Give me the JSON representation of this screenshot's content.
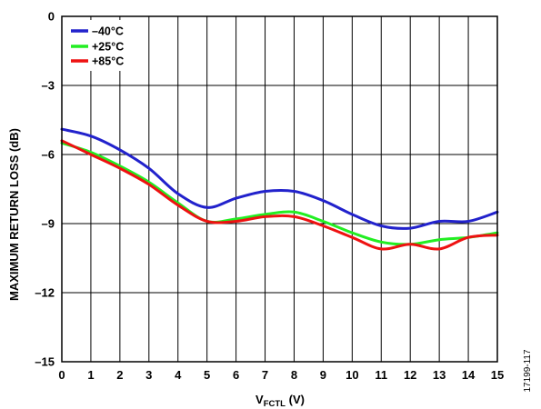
{
  "chart_data": {
    "type": "line",
    "xlabel_main": "V",
    "xlabel_sub": "FCTL",
    "xlabel_unit": " (V)",
    "ylabel": "MAXIMUM RETURN LOSS (dB)",
    "xlim": [
      0,
      15
    ],
    "ylim": [
      -15,
      0
    ],
    "x_ticks": [
      0,
      1,
      2,
      3,
      4,
      5,
      6,
      7,
      8,
      9,
      10,
      11,
      12,
      13,
      14,
      15
    ],
    "y_ticks": [
      0,
      -3,
      -6,
      -9,
      -12,
      -15
    ],
    "y_tick_labels": [
      "0",
      "–3",
      "–6",
      "–9",
      "–12",
      "–15"
    ],
    "grid": true,
    "legend_position": "top-left",
    "figure_id": "17199-117",
    "series": [
      {
        "name": "–40°C",
        "color": "#2222cc",
        "x": [
          0,
          1,
          2,
          3,
          4,
          5,
          6,
          7,
          8,
          9,
          10,
          11,
          12,
          13,
          14,
          15
        ],
        "y": [
          -4.9,
          -5.2,
          -5.8,
          -6.6,
          -7.7,
          -8.3,
          -7.9,
          -7.6,
          -7.6,
          -8.0,
          -8.6,
          -9.1,
          -9.2,
          -8.9,
          -8.9,
          -8.5
        ]
      },
      {
        "name": "+25°C",
        "color": "#22ee22",
        "x": [
          0,
          1,
          2,
          3,
          4,
          5,
          6,
          7,
          8,
          9,
          10,
          11,
          12,
          13,
          14,
          15
        ],
        "y": [
          -5.5,
          -5.9,
          -6.5,
          -7.2,
          -8.1,
          -8.9,
          -8.8,
          -8.6,
          -8.5,
          -8.9,
          -9.4,
          -9.8,
          -9.9,
          -9.7,
          -9.6,
          -9.4
        ]
      },
      {
        "name": "+85°C",
        "color": "#ee1111",
        "x": [
          0,
          1,
          2,
          3,
          4,
          5,
          6,
          7,
          8,
          9,
          10,
          11,
          12,
          13,
          14,
          15
        ],
        "y": [
          -5.4,
          -6.0,
          -6.6,
          -7.3,
          -8.2,
          -8.9,
          -8.9,
          -8.7,
          -8.7,
          -9.1,
          -9.6,
          -10.1,
          -9.9,
          -10.1,
          -9.6,
          -9.5
        ]
      }
    ]
  }
}
